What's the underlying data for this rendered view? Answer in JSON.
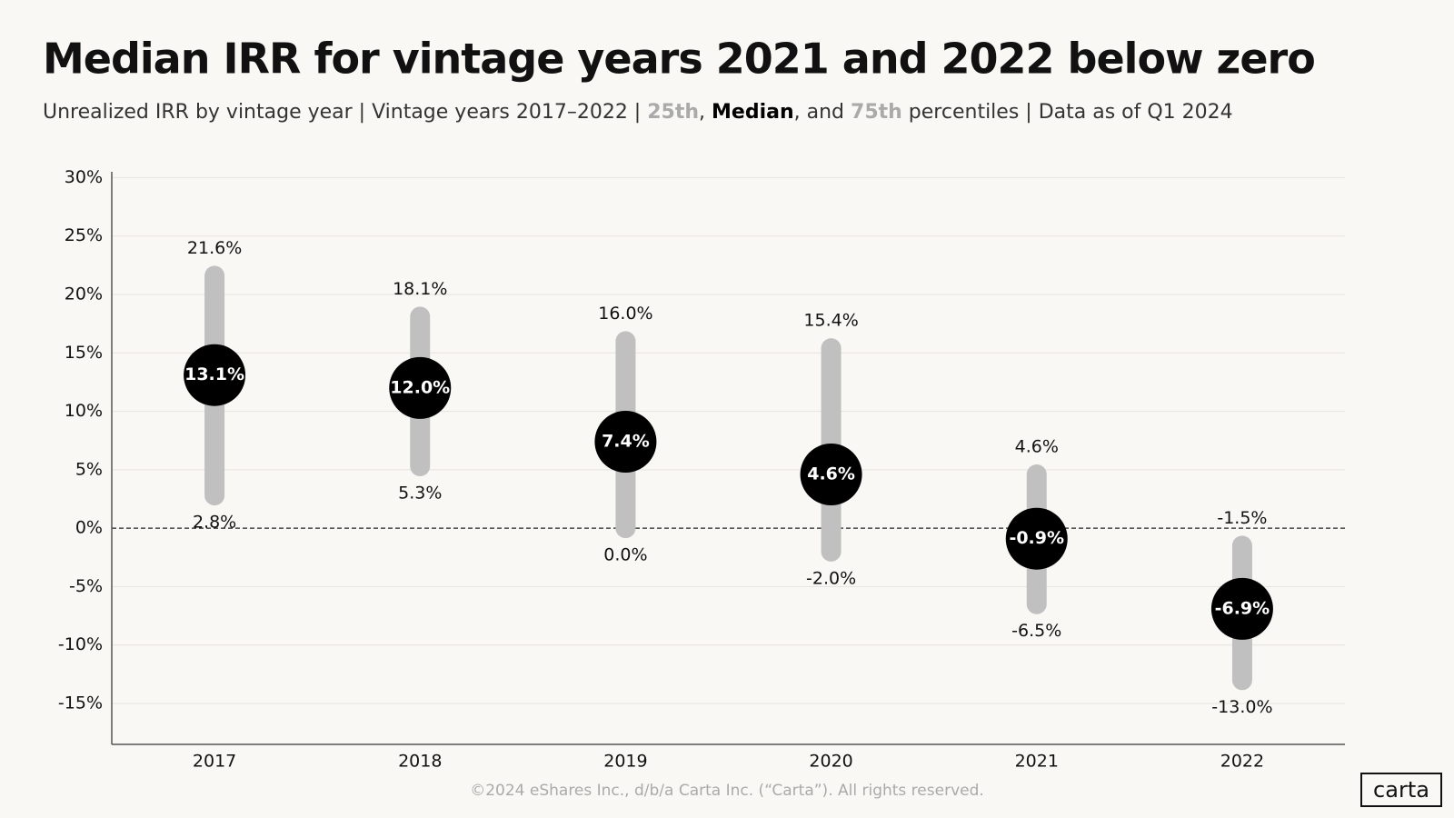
{
  "chart_data": {
    "type": "range",
    "title": "Median IRR for vintage years 2021 and 2022 below zero",
    "subtitle_parts": [
      "Unrealized IRR by vintage year |  Vintage years 2017–2022  |  ",
      ", ",
      ", and ",
      " percentiles  |  Data as of Q1 2024"
    ],
    "categories": [
      "2017",
      "2018",
      "2019",
      "2020",
      "2021",
      "2022"
    ],
    "series": [
      {
        "name": "25th",
        "color": "#c0c0c0",
        "values": [
          2.8,
          5.3,
          0.0,
          -2.0,
          -6.5,
          -13.0
        ],
        "value_labels": [
          "2.8%",
          "5.3%",
          "0.0%",
          "-2.0%",
          "-6.5%",
          "-13.0%"
        ]
      },
      {
        "name": "Median",
        "color": "#000000",
        "values": [
          13.1,
          12.0,
          7.4,
          4.6,
          -0.9,
          -6.9
        ],
        "value_labels": [
          "13.1%",
          "12.0%",
          "7.4%",
          "4.6%",
          "-0.9%",
          "-6.9%"
        ]
      },
      {
        "name": "75th",
        "color": "#c0c0c0",
        "values": [
          21.6,
          18.1,
          16.0,
          15.4,
          4.6,
          -1.5
        ],
        "value_labels": [
          "21.6%",
          "18.1%",
          "16.0%",
          "15.4%",
          "4.6%",
          "-1.5%"
        ]
      }
    ],
    "ylim": [
      -18.5,
      30.5
    ],
    "yticks": [
      {
        "value": 30,
        "label": "30%"
      },
      {
        "value": 25,
        "label": "25%"
      },
      {
        "value": 20,
        "label": "20%"
      },
      {
        "value": 15,
        "label": "15%"
      },
      {
        "value": 10,
        "label": "10%"
      },
      {
        "value": 5,
        "label": "5%"
      },
      {
        "value": 0,
        "label": "0%"
      },
      {
        "value": -5,
        "label": "-5%"
      },
      {
        "value": -10,
        "label": "-10%"
      },
      {
        "value": -15,
        "label": "-15%"
      }
    ],
    "grid": true,
    "footer": "©2024 eShares Inc., d/b/a Carta Inc. (“Carta”). All rights reserved.",
    "logo": "carta"
  }
}
